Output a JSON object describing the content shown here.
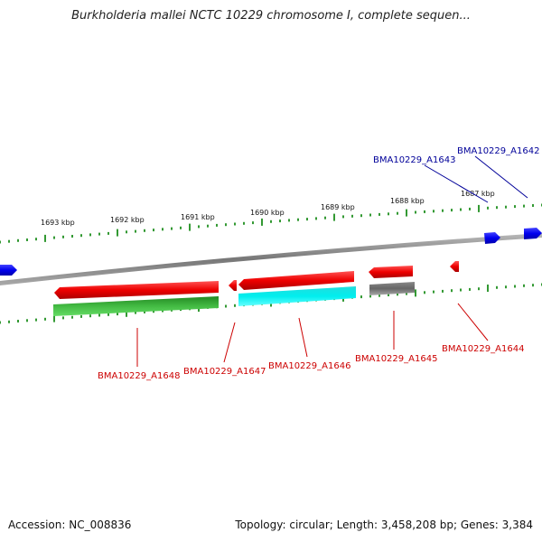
{
  "title": "Burkholderia mallei NCTC 10229 chromosome I, complete sequen...",
  "scale_ticks": [
    {
      "label": "1693 kbp"
    },
    {
      "label": "1692 kbp"
    },
    {
      "label": "1691 kbp"
    },
    {
      "label": "1690 kbp"
    },
    {
      "label": "1689 kbp"
    },
    {
      "label": "1688 kbp"
    },
    {
      "label": "1687 kbp"
    }
  ],
  "genes_forward": [
    {
      "label": "BMA10229_A1642",
      "color": "#0000ee"
    },
    {
      "label": "BMA10229_A1643",
      "color": "#0000ee"
    }
  ],
  "genes_reverse": [
    {
      "label": "BMA10229_A1644",
      "color": "#ee0000"
    },
    {
      "label": "BMA10229_A1645",
      "color": "#ee0000"
    },
    {
      "label": "BMA10229_A1646",
      "color": "#ee0000"
    },
    {
      "label": "BMA10229_A1647",
      "color": "#ee0000"
    },
    {
      "label": "BMA10229_A1648",
      "color": "#ee0000"
    }
  ],
  "feature_colors": {
    "backbone": "#888888",
    "tick": "#339933",
    "cds_green": "#33aa33",
    "cds_cyan": "#00e5e5",
    "cds_gray": "#666666"
  },
  "footer": {
    "accession": "Accession: NC_008836",
    "summary": "Topology: circular; Length: 3,458,208 bp; Genes: 3,384"
  }
}
